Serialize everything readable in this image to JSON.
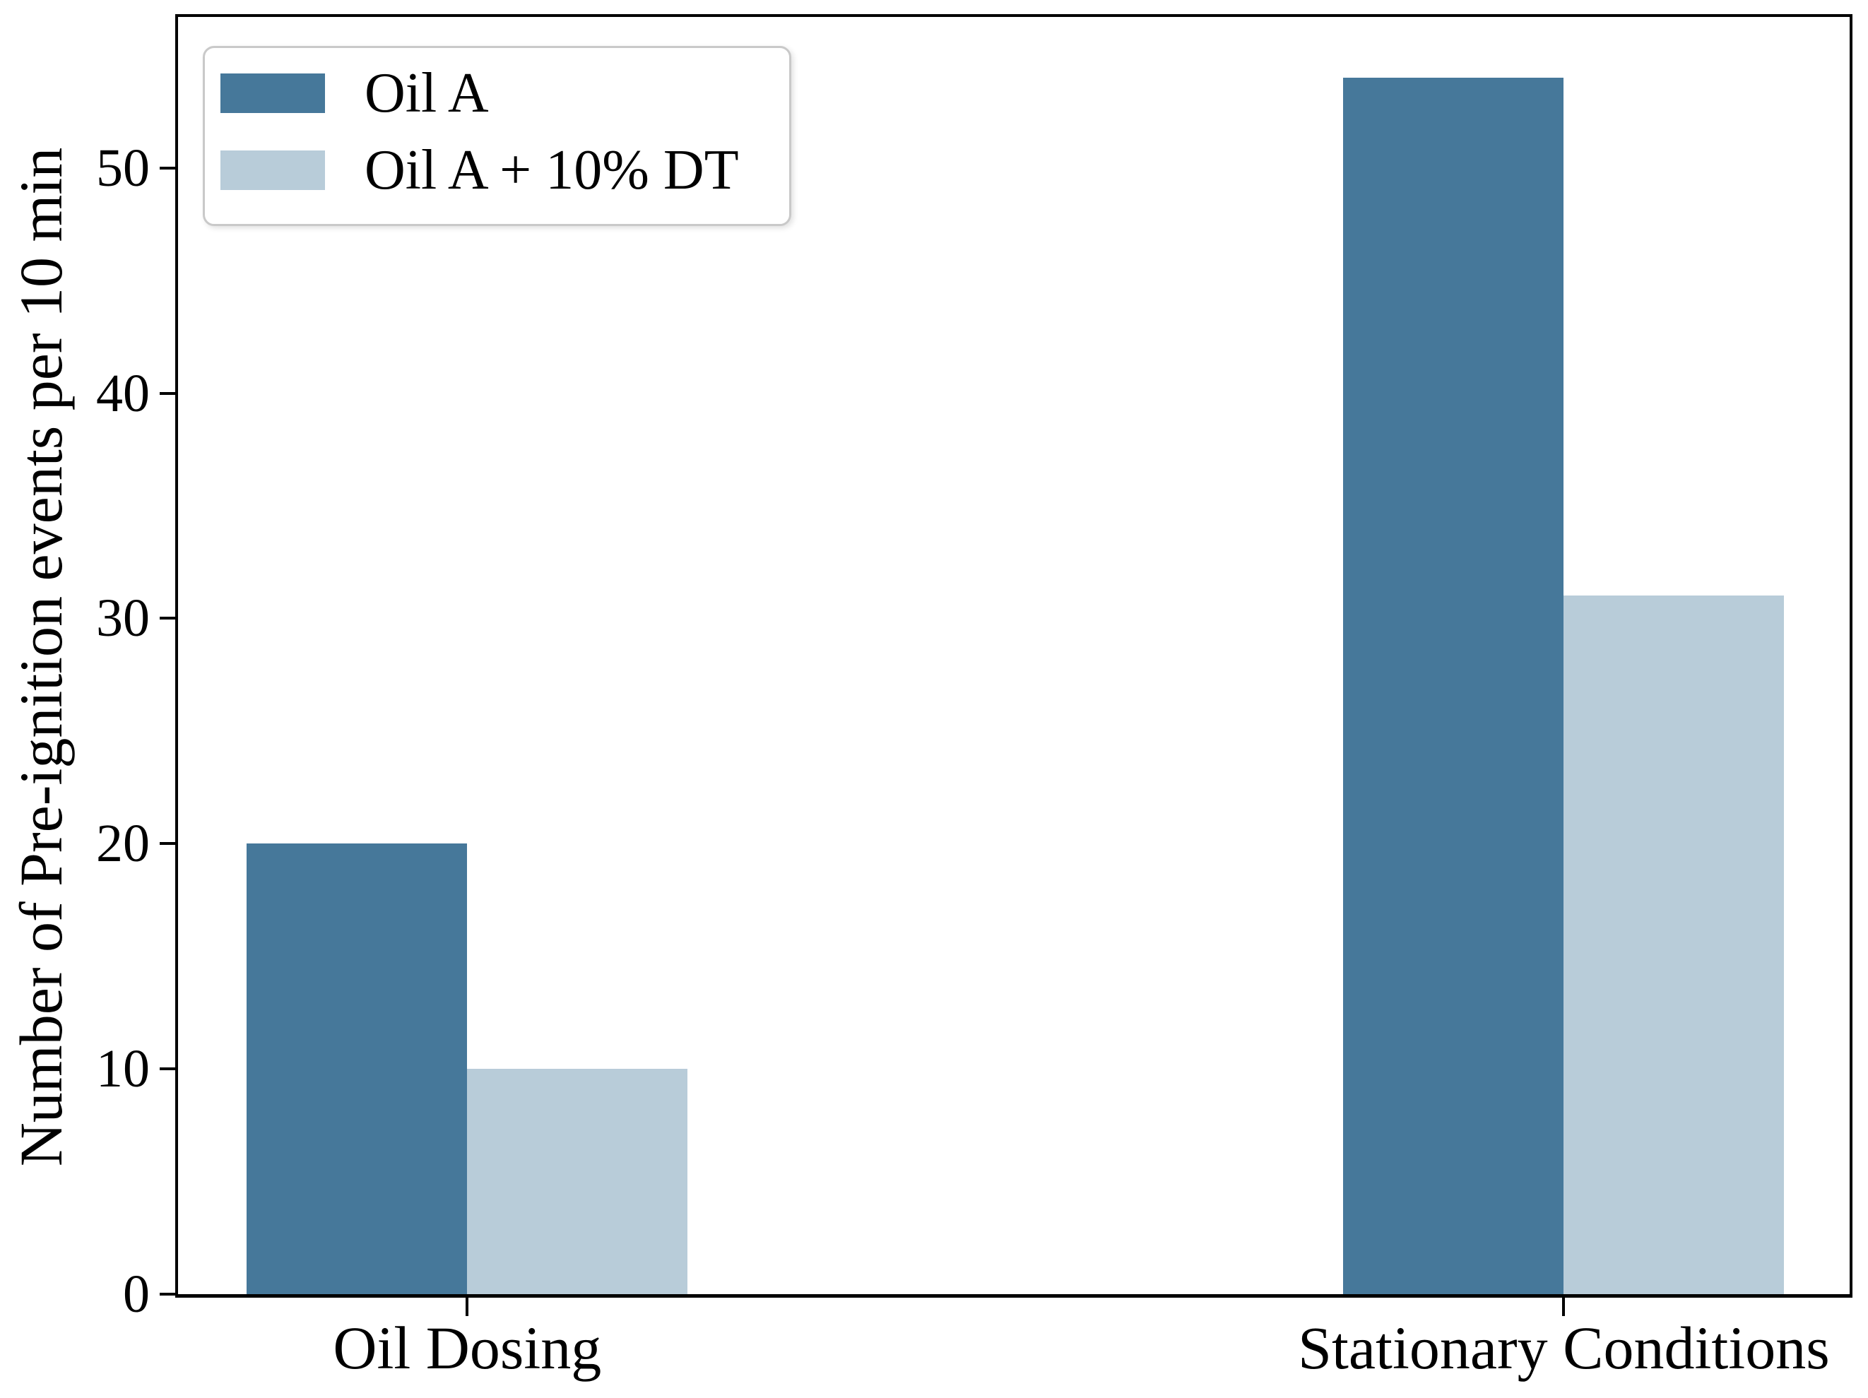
{
  "figure": {
    "background_color": "#ffffff",
    "spine_color": "#000000",
    "legend_border_color": "#c9c9c9"
  },
  "chart_data": {
    "type": "bar",
    "title": "",
    "xlabel": "",
    "ylabel": "Number of Pre-ignition events per 10 min",
    "categories": [
      "Oil Dosing",
      "Stationary Conditions"
    ],
    "series": [
      {
        "name": "Oil A",
        "color": "#46789a",
        "values": [
          20,
          54
        ]
      },
      {
        "name": "Oil A + 10% DT",
        "color": "#b8ccd9",
        "values": [
          10,
          31
        ]
      }
    ],
    "yticks": [
      0,
      10,
      20,
      30,
      40,
      50
    ],
    "ylim": [
      0,
      56.7
    ],
    "grid": false,
    "legend_position": "upper left"
  }
}
